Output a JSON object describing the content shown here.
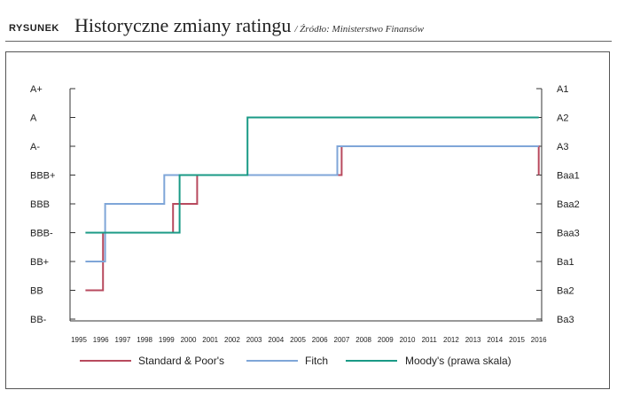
{
  "header": {
    "label": "RYSUNEK",
    "title": "Historyczne zmiany ratingu",
    "source": "/ Źródło: Ministerstwo Finansów"
  },
  "chart_data": {
    "type": "line",
    "step": true,
    "x_ticks": [
      "1995",
      "1996",
      "1997",
      "1998",
      "1999",
      "2000",
      "2001",
      "2002",
      "2003",
      "2004",
      "2005",
      "2006",
      "2007",
      "2008",
      "2009",
      "2010",
      "2011",
      "2012",
      "2013",
      "2014",
      "2015",
      "2016"
    ],
    "left_axis": {
      "labels": [
        "A+",
        "A",
        "A-",
        "BBB+",
        "BBB",
        "BBB-",
        "BB+",
        "BB",
        "BB-"
      ]
    },
    "right_axis": {
      "labels": [
        "A1",
        "A2",
        "A3",
        "Baa1",
        "Baa2",
        "Baa3",
        "Ba1",
        "Ba2",
        "Ba3"
      ]
    },
    "series": [
      {
        "name": "Standard & Poor's",
        "color": "#b84a5e",
        "axis": "left",
        "points": [
          [
            1995.3,
            "BB"
          ],
          [
            1996.1,
            "BBB-"
          ],
          [
            1999.3,
            "BBB"
          ],
          [
            2000.4,
            "BBB+"
          ],
          [
            2007.0,
            "A-"
          ],
          [
            2016.0,
            "BBB+"
          ]
        ]
      },
      {
        "name": "Fitch",
        "color": "#7fa6d8",
        "axis": "left",
        "points": [
          [
            1995.3,
            "BB+"
          ],
          [
            1996.2,
            "BBB"
          ],
          [
            1998.9,
            "BBB+"
          ],
          [
            2006.8,
            "A-"
          ],
          [
            2016.0,
            "A-"
          ]
        ]
      },
      {
        "name": "Moody's (prawa skala)",
        "color": "#1a9a86",
        "axis": "right",
        "points": [
          [
            1995.3,
            "Baa3"
          ],
          [
            1999.6,
            "Baa1"
          ],
          [
            2002.7,
            "A2"
          ],
          [
            2016.0,
            "A2"
          ]
        ]
      }
    ]
  },
  "colors": {
    "axis": "#333333",
    "frame": "#555555"
  }
}
